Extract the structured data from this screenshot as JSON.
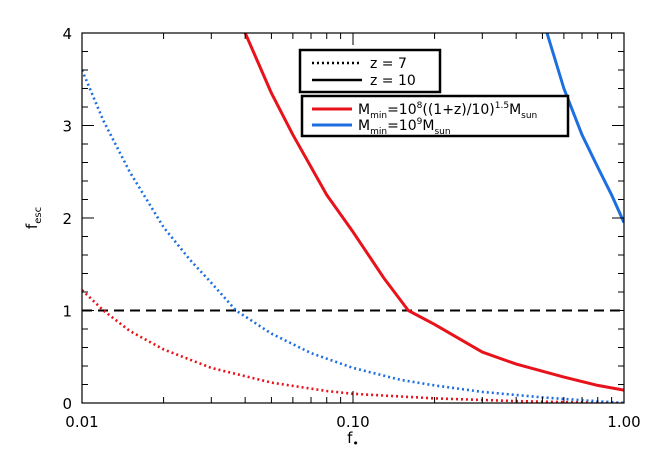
{
  "chart_data": {
    "type": "line",
    "x_scale": "log",
    "xlim": [
      0.01,
      1.0
    ],
    "ylim": [
      0,
      4
    ],
    "xlabel_main": "f",
    "xlabel_sub": "•",
    "ylabel_main": "f",
    "ylabel_sub": "esc",
    "x_ticks": [
      0.01,
      0.1,
      1.0
    ],
    "x_tick_labels": [
      "0.01",
      "0.10",
      "1.00"
    ],
    "y_ticks": [
      0,
      1,
      2,
      3,
      4
    ],
    "y_tick_labels": [
      "0",
      "1",
      "2",
      "3",
      "4"
    ],
    "grid": false,
    "reference_line": {
      "y": 1,
      "style": "dashed",
      "color": "#000000"
    },
    "legend_style": {
      "position": "top-right",
      "entries": [
        {
          "label_text": "z  =  7",
          "dash": "dotted",
          "color": "#000000"
        },
        {
          "label_text": "z  =  10",
          "dash": "solid",
          "color": "#000000"
        }
      ]
    },
    "legend_color": {
      "position": "top-right",
      "entries": [
        {
          "color": "#e8121b",
          "parts": [
            "M",
            "min",
            "=10",
            "8",
            "((1+z)/10)",
            "1.5",
            "M",
            "sun"
          ]
        },
        {
          "color": "#1d6fe0",
          "parts": [
            "M",
            "min",
            "=10",
            "9",
            "M",
            "sun"
          ]
        }
      ]
    },
    "series": [
      {
        "color": "#e8121b",
        "dash": "solid",
        "x": [
          0.04,
          0.05,
          0.06,
          0.08,
          0.1,
          0.13,
          0.16,
          0.2,
          0.3,
          0.4,
          0.6,
          0.8,
          1.0
        ],
        "y": [
          4.0,
          3.35,
          2.9,
          2.25,
          1.85,
          1.35,
          1.0,
          0.85,
          0.55,
          0.42,
          0.28,
          0.19,
          0.14
        ]
      },
      {
        "color": "#e8121b",
        "dash": "dotted",
        "x": [
          0.01,
          0.012,
          0.015,
          0.02,
          0.03,
          0.05,
          0.08,
          0.1,
          0.2,
          0.4,
          0.6,
          1.0
        ],
        "y": [
          1.22,
          1.0,
          0.78,
          0.58,
          0.38,
          0.22,
          0.13,
          0.1,
          0.05,
          0.02,
          0.01,
          0.0
        ]
      },
      {
        "color": "#1d6fe0",
        "dash": "solid",
        "x": [
          0.52,
          0.6,
          0.7,
          0.8,
          0.9,
          1.0
        ],
        "y": [
          4.0,
          3.4,
          2.9,
          2.55,
          2.25,
          1.95
        ]
      },
      {
        "color": "#1d6fe0",
        "dash": "dotted",
        "x": [
          0.01,
          0.012,
          0.015,
          0.02,
          0.025,
          0.03,
          0.037,
          0.05,
          0.07,
          0.1,
          0.15,
          0.2,
          0.3,
          0.5,
          0.7,
          1.0
        ],
        "y": [
          3.6,
          3.05,
          2.5,
          1.9,
          1.55,
          1.3,
          1.0,
          0.75,
          0.54,
          0.38,
          0.25,
          0.19,
          0.12,
          0.06,
          0.03,
          0.0
        ]
      }
    ]
  }
}
